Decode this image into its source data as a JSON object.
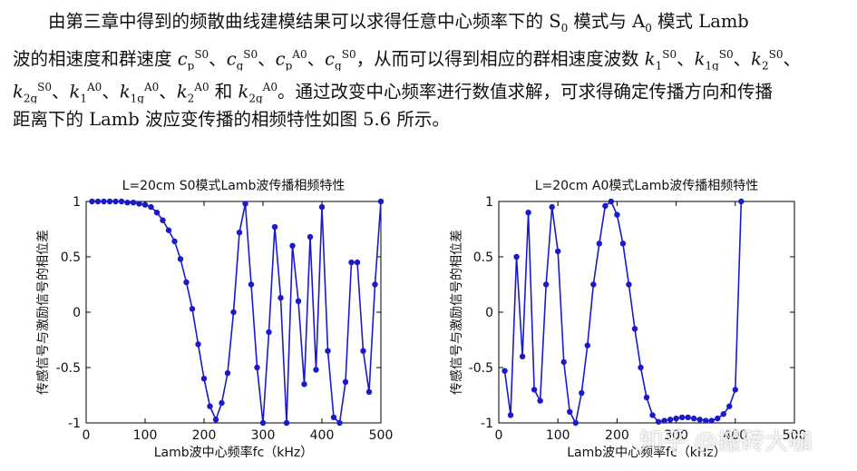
{
  "paragraph": {
    "line1": {
      "pre": "由第三章中得到的频散曲线建模结果可以求得任意中心频率下的 ",
      "s_mode": "S",
      "s_sub": "0",
      "mid": " 模式与 ",
      "a_mode": "A",
      "a_sub": "0",
      "post": " 模式 Lamb"
    },
    "line2": {
      "pre": "波的相速度和群速度 ",
      "c": "c",
      "p": "p",
      "g": "g",
      "s0": "S0",
      "a0": "A0",
      "sep": "、",
      "mid": "，从而可以得到相应的群相速度波数 ",
      "k": "k",
      "k_sub1": "1",
      "k_sub1g": "1g",
      "k_sub2": "2"
    },
    "line3": {
      "k": "k",
      "sub2g": "2g",
      "sub1": "1",
      "sub1g": "1g",
      "sub2": "2",
      "s0": "S0",
      "a0": "A0",
      "sep": "、",
      "and": " 和 ",
      "post": "。通过改变中心频率进行数值求解，可求得确定传播方向和传播"
    },
    "line4": "距离下的 Lamb 波应变传播的相频特性如图 5.6 所示。"
  },
  "chart_data": [
    {
      "type": "line",
      "title": "L=20cm S0模式Lamb波传播相频特性",
      "xlabel": "Lamb波中心频率fc（kHz）",
      "ylabel": "传感信号与激励信号的相位差",
      "xlim": [
        0,
        500
      ],
      "ylim": [
        -1,
        1
      ],
      "xticks": [
        "0",
        "100",
        "200",
        "300",
        "400",
        "500"
      ],
      "yticks": [
        "1",
        "0.5",
        "0",
        "-0.5",
        "-1"
      ],
      "color": "#1a1acd",
      "x": [
        10,
        20,
        30,
        40,
        50,
        60,
        70,
        80,
        90,
        100,
        110,
        120,
        130,
        140,
        150,
        160,
        170,
        180,
        190,
        200,
        210,
        220,
        230,
        240,
        250,
        260,
        270,
        280,
        290,
        300,
        310,
        320,
        330,
        340,
        350,
        360,
        370,
        380,
        390,
        400,
        410,
        420,
        430,
        440,
        450,
        460,
        470,
        480,
        490,
        500
      ],
      "y": [
        1.0,
        1.0,
        1.0,
        1.0,
        1.0,
        1.0,
        0.99,
        0.99,
        0.98,
        0.97,
        0.95,
        0.9,
        0.83,
        0.74,
        0.64,
        0.48,
        0.27,
        0.03,
        -0.29,
        -0.6,
        -0.85,
        -0.97,
        -0.82,
        -0.55,
        0.0,
        0.72,
        0.98,
        0.25,
        -0.5,
        -1.0,
        -0.18,
        0.77,
        0.13,
        -1.0,
        0.6,
        0.1,
        -0.65,
        0.68,
        -0.52,
        0.95,
        -0.35,
        -0.95,
        -1.0,
        -0.63,
        0.45,
        0.45,
        -0.35,
        -0.72,
        0.25,
        1.0
      ]
    },
    {
      "type": "line",
      "title": "L=20cm A0模式Lamb波传播相频特性",
      "xlabel": "Lamb波中心频率fc（kHz）",
      "ylabel": "传感信号与激励信号的相位差",
      "xlim": [
        0,
        500
      ],
      "ylim": [
        -1,
        1
      ],
      "xticks": [
        "0",
        "100",
        "200",
        "300",
        "400",
        "500"
      ],
      "yticks": [
        "1",
        "0.5",
        "0",
        "-0.5",
        "-1"
      ],
      "color": "#1a1acd",
      "x": [
        10,
        20,
        30,
        40,
        50,
        60,
        70,
        80,
        90,
        100,
        110,
        120,
        130,
        140,
        150,
        160,
        170,
        180,
        190,
        200,
        210,
        220,
        230,
        240,
        250,
        260,
        270,
        280,
        290,
        300,
        310,
        320,
        330,
        340,
        350,
        360,
        370,
        380,
        390,
        400,
        410,
        420,
        430,
        440,
        450,
        460,
        470,
        480,
        490,
        500
      ],
      "y": [
        -0.53,
        -0.93,
        0.5,
        -0.4,
        0.9,
        -0.7,
        -0.8,
        0.25,
        0.95,
        0.55,
        -0.45,
        -0.9,
        -1.0,
        -0.73,
        -0.3,
        0.25,
        0.62,
        0.96,
        1.0,
        0.88,
        0.62,
        0.25,
        -0.15,
        -0.5,
        -0.77,
        -0.93,
        -0.99,
        -0.98,
        -0.97,
        -0.96,
        -0.95,
        -0.95,
        -0.96,
        -0.97,
        -0.98,
        -0.98,
        -0.96,
        -0.92,
        -0.85,
        -0.7,
        1.0,
        null,
        null,
        null,
        null,
        null,
        null,
        null,
        null,
        null
      ]
    }
  ],
  "watermark": "知乎 @搬砖大咖"
}
